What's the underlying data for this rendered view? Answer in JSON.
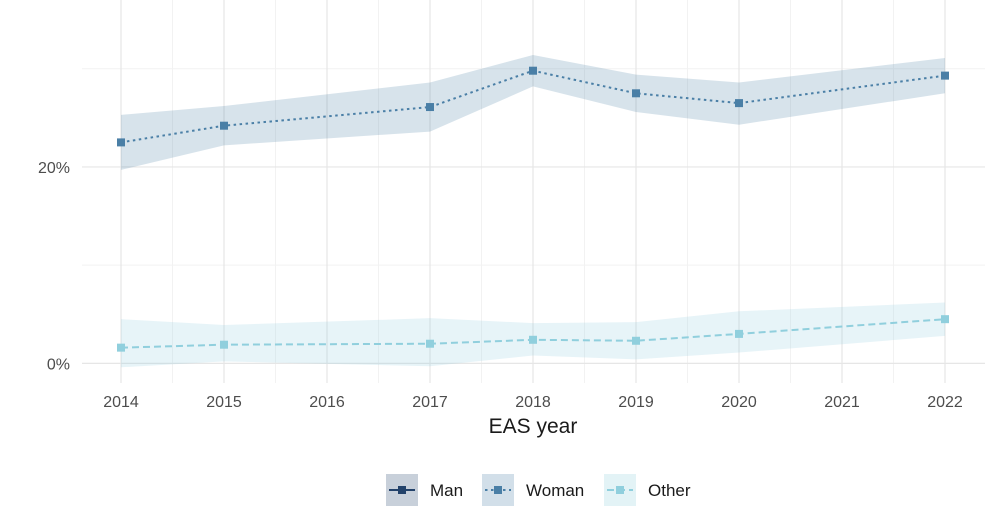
{
  "chart_data": {
    "type": "line",
    "title": "",
    "xlabel": "EAS year",
    "ylabel": "",
    "x": [
      2014,
      2015,
      2016,
      2017,
      2018,
      2019,
      2020,
      2021,
      2022
    ],
    "xlim": [
      2013.6,
      2022.4
    ],
    "ylim": [
      -0.02,
      0.37
    ],
    "y_ticks": [
      {
        "value": 0.0,
        "label": "0%"
      },
      {
        "value": 0.2,
        "label": "20%"
      }
    ],
    "x_ticks": [
      {
        "value": 2014,
        "label": "2014"
      },
      {
        "value": 2015,
        "label": "2015"
      },
      {
        "value": 2016,
        "label": "2016"
      },
      {
        "value": 2017,
        "label": "2017"
      },
      {
        "value": 2018,
        "label": "2018"
      },
      {
        "value": 2019,
        "label": "2019"
      },
      {
        "value": 2020,
        "label": "2020"
      },
      {
        "value": 2021,
        "label": "2021"
      },
      {
        "value": 2022,
        "label": "2022"
      }
    ],
    "grid": true,
    "legend_position": "bottom",
    "series": [
      {
        "name": "Man",
        "color": "#23426a",
        "dash": "solid",
        "points": [],
        "band": []
      },
      {
        "name": "Woman",
        "color": "#4a7fa6",
        "dash": "dotted",
        "points": [
          {
            "x": 2014,
            "y": 0.225
          },
          {
            "x": 2015,
            "y": 0.242
          },
          {
            "x": 2017,
            "y": 0.261
          },
          {
            "x": 2018,
            "y": 0.298
          },
          {
            "x": 2019,
            "y": 0.275
          },
          {
            "x": 2020,
            "y": 0.265
          },
          {
            "x": 2022,
            "y": 0.293
          }
        ],
        "band": [
          {
            "x": 2014,
            "lo": 0.197,
            "hi": 0.253
          },
          {
            "x": 2015,
            "lo": 0.222,
            "hi": 0.262
          },
          {
            "x": 2017,
            "lo": 0.236,
            "hi": 0.286
          },
          {
            "x": 2018,
            "lo": 0.282,
            "hi": 0.314
          },
          {
            "x": 2019,
            "lo": 0.256,
            "hi": 0.294
          },
          {
            "x": 2020,
            "lo": 0.243,
            "hi": 0.286
          },
          {
            "x": 2022,
            "lo": 0.275,
            "hi": 0.311
          }
        ]
      },
      {
        "name": "Other",
        "color": "#90cfdd",
        "dash": "dashed",
        "points": [
          {
            "x": 2014,
            "y": 0.016
          },
          {
            "x": 2015,
            "y": 0.019
          },
          {
            "x": 2017,
            "y": 0.02
          },
          {
            "x": 2018,
            "y": 0.024
          },
          {
            "x": 2019,
            "y": 0.023
          },
          {
            "x": 2020,
            "y": 0.03
          },
          {
            "x": 2022,
            "y": 0.045
          }
        ],
        "band": [
          {
            "x": 2014,
            "lo": -0.004,
            "hi": 0.045
          },
          {
            "x": 2015,
            "lo": 0.002,
            "hi": 0.039
          },
          {
            "x": 2017,
            "lo": -0.003,
            "hi": 0.046
          },
          {
            "x": 2018,
            "lo": 0.008,
            "hi": 0.041
          },
          {
            "x": 2019,
            "lo": 0.004,
            "hi": 0.042
          },
          {
            "x": 2020,
            "lo": 0.011,
            "hi": 0.053
          },
          {
            "x": 2022,
            "lo": 0.028,
            "hi": 0.062
          }
        ]
      }
    ]
  }
}
